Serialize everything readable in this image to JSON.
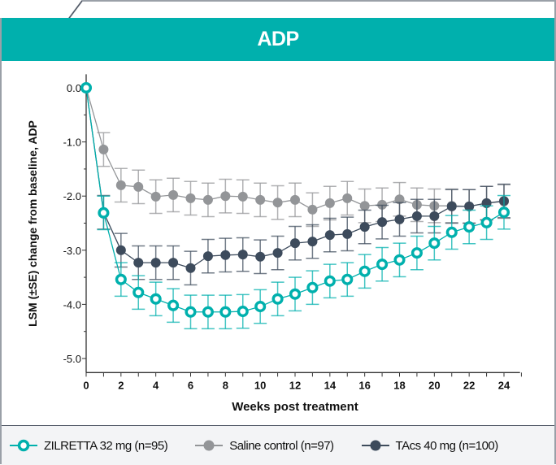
{
  "chart_data": {
    "type": "line",
    "title": "ADP",
    "xlabel": "Weeks post treatment",
    "ylabel": "LSM (±SE) change from baseline, ADP",
    "xlim": [
      0,
      24.5
    ],
    "ylim": [
      -5.2,
      0.1
    ],
    "x_ticks": [
      "0",
      "2",
      "4",
      "6",
      "8",
      "10",
      "12",
      "14",
      "16",
      "18",
      "20",
      "22",
      "24"
    ],
    "y_ticks": [
      "0.0",
      "-1.0",
      "-2.0",
      "-3.0",
      "-4.0",
      "-5.0"
    ],
    "grid": false,
    "legend_position": "bottom",
    "x": [
      0,
      1,
      2,
      3,
      4,
      5,
      6,
      7,
      8,
      9,
      10,
      11,
      12,
      13,
      14,
      15,
      16,
      17,
      18,
      19,
      20,
      21,
      22,
      23,
      24
    ],
    "series": [
      {
        "name": "Saline control (n=97)",
        "color": "#939598",
        "marker": "filled",
        "values": [
          0,
          -1.14,
          -1.8,
          -1.83,
          -2.01,
          -1.98,
          -2.04,
          -2.07,
          -2.0,
          -2.01,
          -2.07,
          -2.12,
          -2.07,
          -2.25,
          -2.13,
          -2.04,
          -2.18,
          -2.16,
          -2.06,
          -2.16,
          -2.18,
          -2.18,
          -2.19,
          -2.13,
          -2.1
        ],
        "se": 0.31
      },
      {
        "name": "TAcs 40 mg (n=100)",
        "color": "#3d4b5c",
        "marker": "filled",
        "values": [
          0,
          -2.3,
          -3.0,
          -3.23,
          -3.23,
          -3.23,
          -3.33,
          -3.11,
          -3.09,
          -3.08,
          -3.12,
          -3.05,
          -2.87,
          -2.84,
          -2.72,
          -2.7,
          -2.57,
          -2.48,
          -2.43,
          -2.37,
          -2.37,
          -2.19,
          -2.19,
          -2.13,
          -2.09
        ],
        "se": 0.31
      },
      {
        "name": "ZILRETTA 32 mg (n=95)",
        "color": "#00b0ad",
        "marker": "open",
        "values": [
          0,
          -2.31,
          -3.54,
          -3.78,
          -3.9,
          -4.02,
          -4.14,
          -4.14,
          -4.14,
          -4.13,
          -4.04,
          -3.9,
          -3.81,
          -3.69,
          -3.57,
          -3.54,
          -3.39,
          -3.26,
          -3.18,
          -3.05,
          -2.87,
          -2.67,
          -2.57,
          -2.49,
          -2.3
        ],
        "se": 0.31
      }
    ]
  },
  "header": {
    "title": "ADP"
  },
  "legend": [
    {
      "label": "ZILRETTA 32 mg (n=95)"
    },
    {
      "label": "Saline control (n=97)"
    },
    {
      "label": "TAcs 40 mg (n=100)"
    }
  ]
}
